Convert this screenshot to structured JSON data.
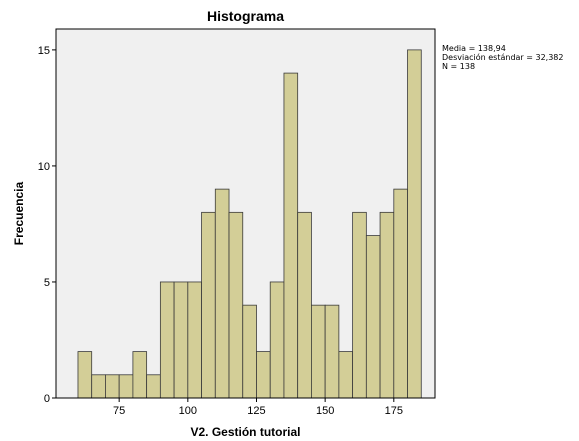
{
  "colors": {
    "plot_background": "#f0f0f0",
    "bar_fill": "#d3ce97",
    "bar_stroke": "#3a3a3a",
    "axis": "#000000"
  },
  "stats": {
    "mean": "Media = 138,94",
    "std": "Desviación estándar = 32,382",
    "n": "N = 138"
  },
  "chart_data": {
    "type": "bar",
    "title": "Histograma",
    "xlabel": "V2. Gestión tutorial",
    "ylabel": "Frecuencia",
    "xlim": [
      52,
      190
    ],
    "ylim": [
      0,
      15.9
    ],
    "x_ticks": [
      75,
      100,
      125,
      150,
      175
    ],
    "y_ticks": [
      0,
      5,
      10,
      15
    ],
    "grid": false,
    "bin_width": 5,
    "bins": [
      {
        "start": 60,
        "end": 65,
        "value": 2
      },
      {
        "start": 65,
        "end": 70,
        "value": 1
      },
      {
        "start": 70,
        "end": 75,
        "value": 1
      },
      {
        "start": 75,
        "end": 80,
        "value": 1
      },
      {
        "start": 80,
        "end": 85,
        "value": 2
      },
      {
        "start": 85,
        "end": 90,
        "value": 1
      },
      {
        "start": 90,
        "end": 95,
        "value": 5
      },
      {
        "start": 95,
        "end": 100,
        "value": 5
      },
      {
        "start": 100,
        "end": 105,
        "value": 5
      },
      {
        "start": 105,
        "end": 110,
        "value": 8
      },
      {
        "start": 110,
        "end": 115,
        "value": 9
      },
      {
        "start": 115,
        "end": 120,
        "value": 8
      },
      {
        "start": 120,
        "end": 125,
        "value": 4
      },
      {
        "start": 125,
        "end": 130,
        "value": 2
      },
      {
        "start": 130,
        "end": 135,
        "value": 5
      },
      {
        "start": 135,
        "end": 140,
        "value": 14
      },
      {
        "start": 140,
        "end": 145,
        "value": 8
      },
      {
        "start": 145,
        "end": 150,
        "value": 4
      },
      {
        "start": 150,
        "end": 155,
        "value": 4
      },
      {
        "start": 155,
        "end": 160,
        "value": 2
      },
      {
        "start": 160,
        "end": 165,
        "value": 8
      },
      {
        "start": 165,
        "end": 170,
        "value": 7
      },
      {
        "start": 170,
        "end": 175,
        "value": 8
      },
      {
        "start": 175,
        "end": 180,
        "value": 9
      },
      {
        "start": 180,
        "end": 185,
        "value": 15
      }
    ]
  }
}
